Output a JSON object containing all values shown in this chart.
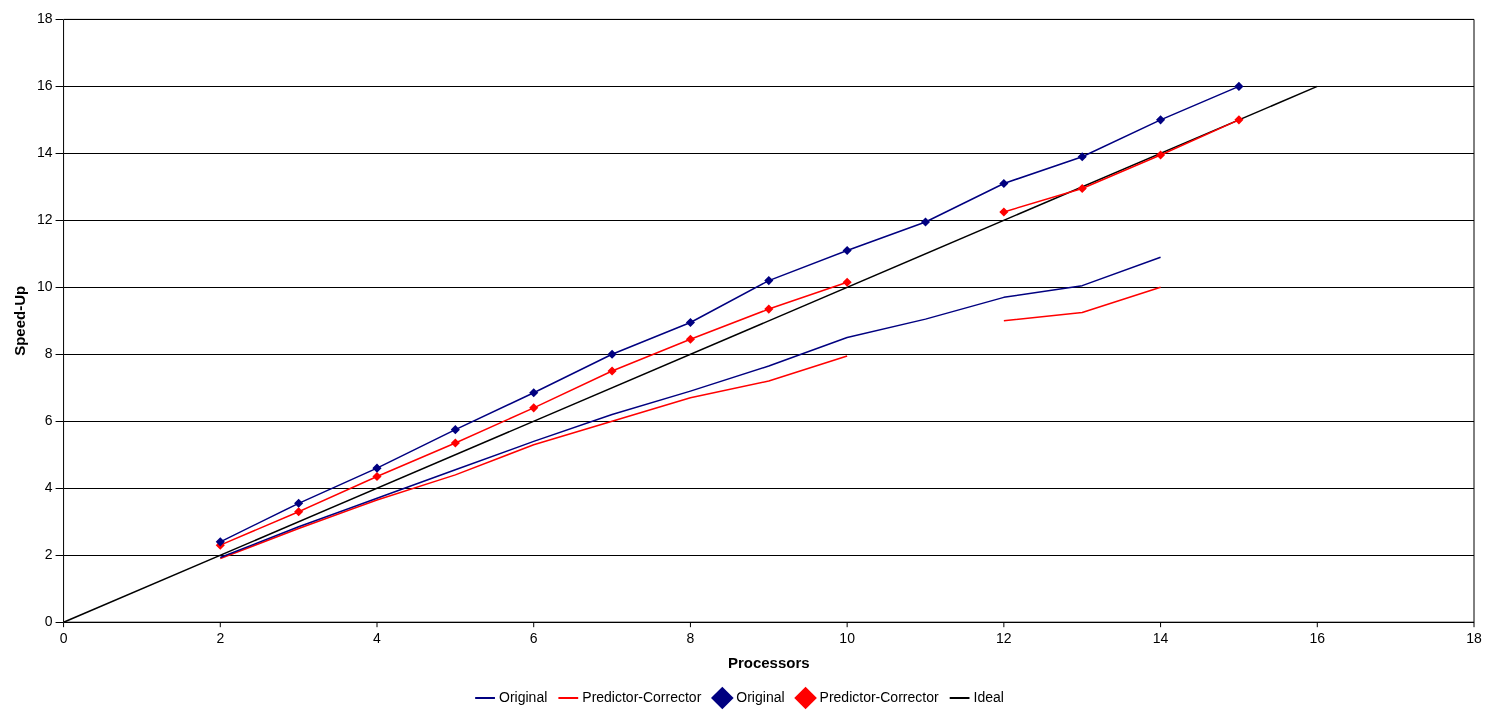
{
  "chart_data": {
    "type": "line",
    "xlabel": "Processors",
    "ylabel": "Speed-Up",
    "xlim": [
      0,
      18
    ],
    "xticks": [
      0,
      2,
      4,
      6,
      8,
      10,
      12,
      14,
      16,
      18
    ],
    "ylim": [
      0,
      18
    ],
    "yticks": [
      0,
      2,
      4,
      6,
      8,
      10,
      12,
      14,
      16,
      18
    ],
    "grid": "y",
    "legend": "bottom",
    "line_style": "solid",
    "series": [
      {
        "name": "Original",
        "color": "#000080",
        "marker": "none",
        "x": [
          2,
          3,
          4,
          5,
          6,
          7,
          8,
          9,
          10,
          11,
          12,
          13,
          14
        ],
        "values": [
          1.93,
          2.85,
          3.7,
          4.55,
          5.4,
          6.2,
          6.9,
          7.65,
          8.5,
          9.05,
          9.7,
          10.05,
          10.9
        ]
      },
      {
        "name": "Predictor-Corrector",
        "color": "#ff0000",
        "marker": "none",
        "x": [
          2,
          3,
          4,
          5,
          6,
          7,
          8,
          9,
          10,
          11,
          12,
          13,
          14
        ],
        "values": [
          1.9,
          2.8,
          3.65,
          4.4,
          5.3,
          6.0,
          6.7,
          7.2,
          7.95,
          null,
          9.0,
          9.25,
          10.0
        ]
      },
      {
        "name": "Original",
        "color": "#000080",
        "marker": "diamond",
        "x": [
          2,
          3,
          4,
          5,
          6,
          7,
          8,
          9,
          10,
          11,
          12,
          13,
          14,
          15
        ],
        "values": [
          2.4,
          3.55,
          4.6,
          5.75,
          6.85,
          8.0,
          8.95,
          10.2,
          11.1,
          11.95,
          13.1,
          13.9,
          15.0,
          16.0
        ]
      },
      {
        "name": "Predictor-Corrector",
        "color": "#ff0000",
        "marker": "diamond",
        "x": [
          2,
          3,
          4,
          5,
          6,
          7,
          8,
          9,
          10,
          11,
          12,
          13,
          14,
          15
        ],
        "values": [
          2.3,
          3.3,
          4.35,
          5.35,
          6.4,
          7.5,
          8.45,
          9.35,
          10.15,
          null,
          12.25,
          12.95,
          13.95,
          15.0
        ]
      },
      {
        "name": "Ideal",
        "color": "#000000",
        "marker": "none",
        "x": [
          0,
          16
        ],
        "values": [
          0,
          16
        ]
      }
    ]
  }
}
